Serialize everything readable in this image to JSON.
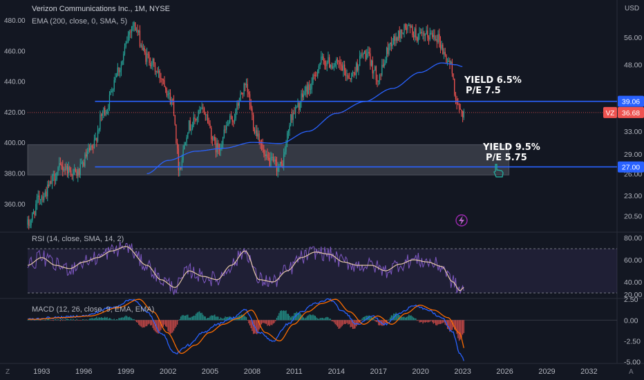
{
  "header": {
    "symbol_line": "Verizon Communications Inc., 1M, NYSE",
    "ema_line": "EMA (200, close, 0, SMA, 5)",
    "rsi_line": "RSI (14, close, SMA, 14, 2)",
    "macd_line": "MACD (12, 26, close, 9, EMA, EMA)"
  },
  "colors": {
    "background": "#131722",
    "up": "#26a69a",
    "down": "#ef5350",
    "ema": "#2962ff",
    "hline": "#2962ff",
    "rsi": "#7e57c2",
    "rsi_ma": "#e6c9a8",
    "macd": "#2962ff",
    "signal": "#ff6d00",
    "grid_text": "#b2b5be"
  },
  "annotations": [
    {
      "id": "upper",
      "line1": "YIELD 6.5%",
      "line2": "P/E 7.5"
    },
    {
      "id": "lower",
      "line1": "YIELD 9.5%",
      "line2": "P/E 5.75"
    }
  ],
  "price_badges": {
    "upper_level": "39.06",
    "lower_level": "27.00",
    "ticker": "VZ",
    "last": "36.68"
  },
  "chart_data": [
    {
      "type": "candlestick",
      "name": "price",
      "title": "Verizon Communications Inc., 1M, NYSE",
      "scale": "log",
      "x_range": [
        1992.0,
        2034.0
      ],
      "y_range": [
        18.7,
        67
      ],
      "left_tick_labels": [
        "480.00",
        "460.00",
        "440.00",
        "420.00",
        "400.00",
        "380.00",
        "360.00"
      ],
      "right_ticks": [
        56.0,
        48.0,
        39.06,
        36.68,
        33.0,
        29.0,
        27.0,
        26.0,
        23.0,
        20.5
      ],
      "right_tick_labels": [
        "56.00",
        "48.00",
        "39.06",
        "36.68",
        "33.00",
        "29.00",
        "27.00",
        "26.00",
        "23.00",
        "20.50"
      ],
      "unit": "USD",
      "hlines": [
        39.06,
        27.0
      ],
      "dotted_last_price": 36.68,
      "zone": {
        "from_x": 1992.0,
        "to_x": 2026.3,
        "low": 25.8,
        "high": 30.6
      },
      "anchors": [
        [
          1992.0,
          19.5
        ],
        [
          1993.0,
          23.0
        ],
        [
          1994.5,
          27.0
        ],
        [
          1995.5,
          26.0
        ],
        [
          1996.5,
          29.5
        ],
        [
          1997.5,
          37.0
        ],
        [
          1998.5,
          47.0
        ],
        [
          1999.5,
          60.0
        ],
        [
          2000.5,
          50.0
        ],
        [
          2001.5,
          45.0
        ],
        [
          2002.3,
          39.0
        ],
        [
          2002.8,
          27.0
        ],
        [
          2003.5,
          34.0
        ],
        [
          2004.5,
          37.0
        ],
        [
          2005.5,
          30.0
        ],
        [
          2006.5,
          35.0
        ],
        [
          2007.5,
          42.0
        ],
        [
          2008.3,
          33.0
        ],
        [
          2009.0,
          28.0
        ],
        [
          2010.0,
          27.0
        ],
        [
          2011.0,
          37.0
        ],
        [
          2012.0,
          42.0
        ],
        [
          2013.0,
          49.0
        ],
        [
          2014.0,
          48.0
        ],
        [
          2015.0,
          45.0
        ],
        [
          2016.0,
          51.0
        ],
        [
          2017.0,
          45.0
        ],
        [
          2018.0,
          55.0
        ],
        [
          2019.0,
          59.0
        ],
        [
          2020.0,
          56.0
        ],
        [
          2021.0,
          57.0
        ],
        [
          2022.0,
          49.0
        ],
        [
          2022.75,
          37.0
        ],
        [
          2023.1,
          36.68
        ]
      ],
      "ema_anchors": [
        [
          2000.5,
          26.0
        ],
        [
          2002.0,
          28.0
        ],
        [
          2004.0,
          29.5
        ],
        [
          2006.0,
          30.0
        ],
        [
          2008.0,
          31.0
        ],
        [
          2010.0,
          30.8
        ],
        [
          2012.0,
          33.0
        ],
        [
          2014.0,
          36.5
        ],
        [
          2016.0,
          39.0
        ],
        [
          2018.0,
          42.0
        ],
        [
          2020.0,
          46.0
        ],
        [
          2021.5,
          48.5
        ],
        [
          2022.5,
          48.0
        ],
        [
          2023.0,
          47.5
        ]
      ]
    },
    {
      "type": "line",
      "name": "rsi",
      "title": "RSI (14, close, SMA, 14, 2)",
      "y_range": [
        25,
        85
      ],
      "ticks": [
        80,
        60,
        40,
        20
      ],
      "tick_labels": [
        "80.00",
        "60.00",
        "40.00",
        "20.00"
      ],
      "bands": [
        70,
        30
      ],
      "anchors": [
        [
          1992.0,
          55
        ],
        [
          1993.0,
          62
        ],
        [
          1994.0,
          55
        ],
        [
          1995.0,
          52
        ],
        [
          1996.0,
          58
        ],
        [
          1997.0,
          62
        ],
        [
          1998.0,
          68
        ],
        [
          1999.0,
          72
        ],
        [
          2000.5,
          55
        ],
        [
          2001.5,
          42
        ],
        [
          2002.5,
          35
        ],
        [
          2003.5,
          50
        ],
        [
          2004.5,
          45
        ],
        [
          2005.5,
          42
        ],
        [
          2006.5,
          55
        ],
        [
          2007.5,
          68
        ],
        [
          2008.5,
          42
        ],
        [
          2009.5,
          40
        ],
        [
          2010.5,
          50
        ],
        [
          2011.5,
          62
        ],
        [
          2012.5,
          67
        ],
        [
          2013.5,
          65
        ],
        [
          2014.5,
          58
        ],
        [
          2015.5,
          55
        ],
        [
          2016.5,
          55
        ],
        [
          2017.5,
          50
        ],
        [
          2018.5,
          56
        ],
        [
          2019.5,
          60
        ],
        [
          2020.5,
          58
        ],
        [
          2021.5,
          54
        ],
        [
          2022.3,
          40
        ],
        [
          2022.8,
          32
        ],
        [
          2023.1,
          35
        ]
      ]
    },
    {
      "type": "line",
      "name": "macd",
      "title": "MACD (12, 26, close, 9, EMA, EMA)",
      "y_range": [
        -5.2,
        2.6
      ],
      "ticks": [
        2.5,
        0.0,
        -2.5,
        -5.0
      ],
      "tick_labels": [
        "2.50",
        "0.00",
        "-2.50",
        "-5.00"
      ],
      "anchors": [
        [
          1992.0,
          0.1
        ],
        [
          1994.0,
          0.3
        ],
        [
          1996.0,
          0.5
        ],
        [
          1998.0,
          1.5
        ],
        [
          1999.5,
          2.5
        ],
        [
          2000.5,
          1.0
        ],
        [
          2001.5,
          -1.5
        ],
        [
          2002.5,
          -4.0
        ],
        [
          2003.5,
          -3.0
        ],
        [
          2004.5,
          -1.5
        ],
        [
          2005.5,
          -0.5
        ],
        [
          2006.5,
          0.2
        ],
        [
          2007.5,
          1.2
        ],
        [
          2008.5,
          -1.5
        ],
        [
          2009.5,
          -2.5
        ],
        [
          2010.5,
          -0.5
        ],
        [
          2011.5,
          1.0
        ],
        [
          2012.5,
          2.0
        ],
        [
          2013.5,
          2.5
        ],
        [
          2014.5,
          1.0
        ],
        [
          2015.5,
          -0.5
        ],
        [
          2016.5,
          0.5
        ],
        [
          2017.5,
          -0.5
        ],
        [
          2018.5,
          0.8
        ],
        [
          2019.5,
          1.8
        ],
        [
          2020.5,
          1.2
        ],
        [
          2021.5,
          0.3
        ],
        [
          2022.3,
          -1.5
        ],
        [
          2022.8,
          -4.0
        ],
        [
          2023.1,
          -4.8
        ]
      ]
    }
  ],
  "time_axis": {
    "ticks": [
      1993,
      1996,
      1999,
      2002,
      2005,
      2008,
      2011,
      2014,
      2017,
      2020,
      2023,
      2026,
      2029,
      2032
    ],
    "tick_labels": [
      "1993",
      "1996",
      "1999",
      "2002",
      "2005",
      "2008",
      "2011",
      "2014",
      "2017",
      "2020",
      "2023",
      "2026",
      "2029",
      "2032"
    ],
    "corner_left": "Z",
    "corner_right": "A"
  }
}
